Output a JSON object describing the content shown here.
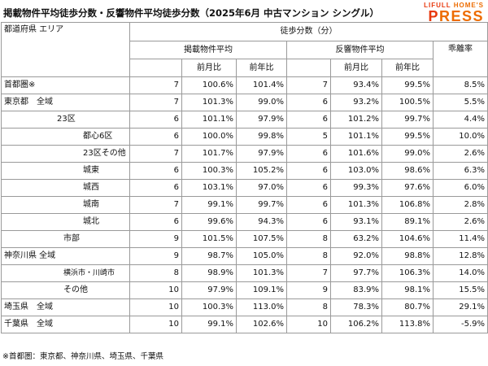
{
  "title": "掲載物件平均徒歩分数・反響物件平均徒歩分数（2025年6月 中古マンション シングル）",
  "logo": {
    "top_accent": "LIFULL",
    "top_main": " HOME'S",
    "bottom_accent": "P",
    "bottom_main": "RESS"
  },
  "table": {
    "header": {
      "region_col": "都道府県 エリア",
      "group": "徒歩分数（分）",
      "listed": "掲載物件平均",
      "response": "反響物件平均",
      "divergence": "乖離率",
      "mom": "前月比",
      "yoy": "前年比"
    },
    "rows": [
      {
        "region": "首都圏※",
        "l_val": "7",
        "l_mom": "100.6%",
        "l_yoy": "101.4%",
        "r_val": "7",
        "r_mom": "93.4%",
        "r_yoy": "99.5%",
        "div": "8.5%"
      },
      {
        "region": "東京都　全域",
        "l_val": "7",
        "l_mom": "101.3%",
        "l_yoy": "99.0%",
        "r_val": "6",
        "r_mom": "93.2%",
        "r_yoy": "100.5%",
        "div": "5.5%"
      },
      {
        "region": "23区",
        "l_val": "6",
        "l_mom": "101.1%",
        "l_yoy": "97.9%",
        "r_val": "6",
        "r_mom": "101.2%",
        "r_yoy": "99.7%",
        "div": "4.4%"
      },
      {
        "region": "都心6区",
        "l_val": "6",
        "l_mom": "100.0%",
        "l_yoy": "99.8%",
        "r_val": "5",
        "r_mom": "101.1%",
        "r_yoy": "99.5%",
        "div": "10.0%"
      },
      {
        "region": "23区その他",
        "l_val": "7",
        "l_mom": "101.7%",
        "l_yoy": "97.9%",
        "r_val": "6",
        "r_mom": "101.6%",
        "r_yoy": "99.0%",
        "div": "2.6%"
      },
      {
        "region": "城東",
        "l_val": "6",
        "l_mom": "100.3%",
        "l_yoy": "105.2%",
        "r_val": "6",
        "r_mom": "103.0%",
        "r_yoy": "98.6%",
        "div": "6.3%"
      },
      {
        "region": "城西",
        "l_val": "6",
        "l_mom": "103.1%",
        "l_yoy": "97.0%",
        "r_val": "6",
        "r_mom": "99.3%",
        "r_yoy": "97.6%",
        "div": "6.0%"
      },
      {
        "region": "城南",
        "l_val": "7",
        "l_mom": "99.1%",
        "l_yoy": "99.7%",
        "r_val": "6",
        "r_mom": "101.3%",
        "r_yoy": "106.8%",
        "div": "2.8%"
      },
      {
        "region": "城北",
        "l_val": "6",
        "l_mom": "99.6%",
        "l_yoy": "94.3%",
        "r_val": "6",
        "r_mom": "93.1%",
        "r_yoy": "89.1%",
        "div": "2.6%"
      },
      {
        "region": "市部",
        "l_val": "9",
        "l_mom": "101.5%",
        "l_yoy": "107.5%",
        "r_val": "8",
        "r_mom": "63.2%",
        "r_yoy": "104.6%",
        "div": "11.4%"
      },
      {
        "region": "神奈川県 全域",
        "l_val": "9",
        "l_mom": "98.7%",
        "l_yoy": "105.0%",
        "r_val": "8",
        "r_mom": "92.0%",
        "r_yoy": "98.8%",
        "div": "12.8%"
      },
      {
        "region": "横浜市・川崎市",
        "l_val": "8",
        "l_mom": "98.9%",
        "l_yoy": "101.3%",
        "r_val": "7",
        "r_mom": "97.7%",
        "r_yoy": "106.3%",
        "div": "14.0%"
      },
      {
        "region": "その他",
        "l_val": "10",
        "l_mom": "97.9%",
        "l_yoy": "109.1%",
        "r_val": "9",
        "r_mom": "83.9%",
        "r_yoy": "98.1%",
        "div": "15.5%"
      },
      {
        "region": "埼玉県　全域",
        "l_val": "10",
        "l_mom": "100.3%",
        "l_yoy": "113.0%",
        "r_val": "8",
        "r_mom": "78.3%",
        "r_yoy": "80.7%",
        "div": "29.1%"
      },
      {
        "region": "千葉県　全域",
        "l_val": "10",
        "l_mom": "99.1%",
        "l_yoy": "102.6%",
        "r_val": "10",
        "r_mom": "106.2%",
        "r_yoy": "113.8%",
        "div": "-5.9%"
      }
    ]
  },
  "note": "※首都圏：東京都、神奈川県、埼玉県、千葉県"
}
